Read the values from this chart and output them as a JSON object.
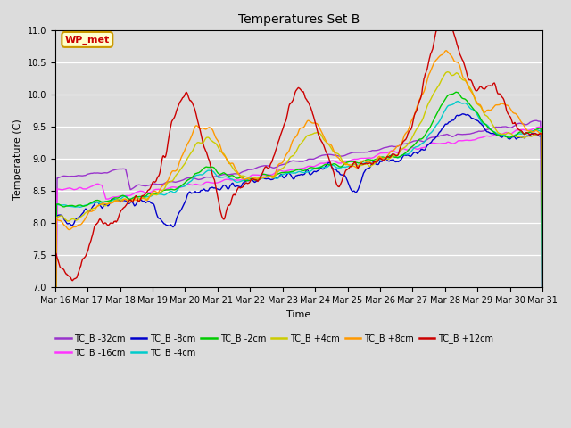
{
  "title": "Temperatures Set B",
  "xlabel": "Time",
  "ylabel": "Temperature (C)",
  "ylim": [
    7.0,
    11.0
  ],
  "yticks": [
    7.0,
    7.5,
    8.0,
    8.5,
    9.0,
    9.5,
    10.0,
    10.5,
    11.0
  ],
  "bg_color": "#dcdcdc",
  "series_colors": {
    "TC_B -32cm": "#9933cc",
    "TC_B -16cm": "#ff33ff",
    "TC_B -8cm": "#0000cc",
    "TC_B -4cm": "#00cccc",
    "TC_B -2cm": "#00cc00",
    "TC_B +4cm": "#cccc00",
    "TC_B +8cm": "#ff9900",
    "TC_B +12cm": "#cc0000"
  },
  "n_points": 720,
  "xtick_labels": [
    "Mar 16",
    "Mar 17",
    "Mar 18",
    "Mar 19",
    "Mar 20",
    "Mar 21",
    "Mar 22",
    "Mar 23",
    "Mar 24",
    "Mar 25",
    "Mar 26",
    "Mar 27",
    "Mar 28",
    "Mar 29",
    "Mar 30",
    "Mar 31"
  ],
  "wp_met_label": "WP_met",
  "wp_met_color": "#cc0000",
  "wp_met_bg": "#ffffcc",
  "wp_met_border": "#cc9900",
  "legend_order": [
    "TC_B -32cm",
    "TC_B -16cm",
    "TC_B -8cm",
    "TC_B -4cm",
    "TC_B -2cm",
    "TC_B +4cm",
    "TC_B +8cm",
    "TC_B +12cm"
  ]
}
